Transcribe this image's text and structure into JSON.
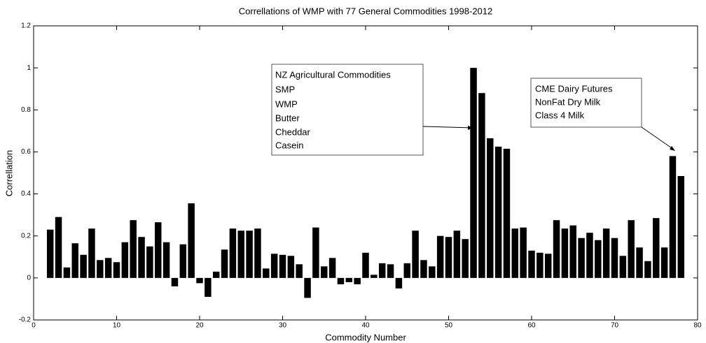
{
  "chart_data": {
    "type": "bar",
    "title": "Correllations of WMP with 77 General Commodities 1998-2012",
    "xlabel": "Commodity Number",
    "ylabel": "Correllation",
    "x": [
      2,
      3,
      4,
      5,
      6,
      7,
      8,
      9,
      10,
      11,
      12,
      13,
      14,
      15,
      16,
      17,
      18,
      19,
      20,
      21,
      22,
      23,
      24,
      25,
      26,
      27,
      28,
      29,
      30,
      31,
      32,
      33,
      34,
      35,
      36,
      37,
      38,
      39,
      40,
      41,
      42,
      43,
      44,
      45,
      46,
      47,
      48,
      49,
      50,
      51,
      52,
      53,
      54,
      55,
      56,
      57,
      58,
      59,
      60,
      61,
      62,
      63,
      64,
      65,
      66,
      67,
      68,
      69,
      70,
      71,
      72,
      73,
      74,
      75,
      76,
      77,
      78
    ],
    "values": [
      0.23,
      0.29,
      0.05,
      0.165,
      0.11,
      0.235,
      0.085,
      0.095,
      0.075,
      0.17,
      0.275,
      0.195,
      0.15,
      0.265,
      0.17,
      -0.04,
      0.16,
      0.355,
      -0.025,
      -0.09,
      0.03,
      0.135,
      0.235,
      0.225,
      0.225,
      0.235,
      0.045,
      0.115,
      0.11,
      0.105,
      0.065,
      -0.095,
      0.24,
      0.055,
      0.095,
      -0.03,
      -0.02,
      -0.03,
      0.12,
      0.015,
      0.07,
      0.065,
      -0.05,
      0.07,
      0.225,
      0.085,
      0.055,
      0.2,
      0.195,
      0.225,
      0.185,
      1.0,
      0.88,
      0.665,
      0.625,
      0.615,
      0.235,
      0.24,
      0.13,
      0.12,
      0.115,
      0.275,
      0.235,
      0.25,
      0.19,
      0.215,
      0.18,
      0.235,
      0.19,
      0.105,
      0.275,
      0.145,
      0.08,
      0.285,
      0.145,
      0.58,
      0.485
    ],
    "color": "#000000",
    "xlim": [
      0,
      80
    ],
    "xticks": [
      0,
      10,
      20,
      30,
      40,
      50,
      60,
      70,
      80
    ],
    "ylim": [
      -0.2,
      1.2
    ],
    "yticks": [
      -0.2,
      0,
      0.2,
      0.4,
      0.6,
      0.8,
      1,
      1.2
    ],
    "grid": false,
    "annotations": [
      {
        "lines": [
          "NZ Agricultural Commodities",
          "SMP",
          "WMP",
          "Butter",
          "Cheddar",
          "Casein"
        ]
      },
      {
        "lines": [
          "CME Dairy Futures",
          "NonFat Dry Milk",
          "Class 4 Milk"
        ]
      }
    ]
  }
}
